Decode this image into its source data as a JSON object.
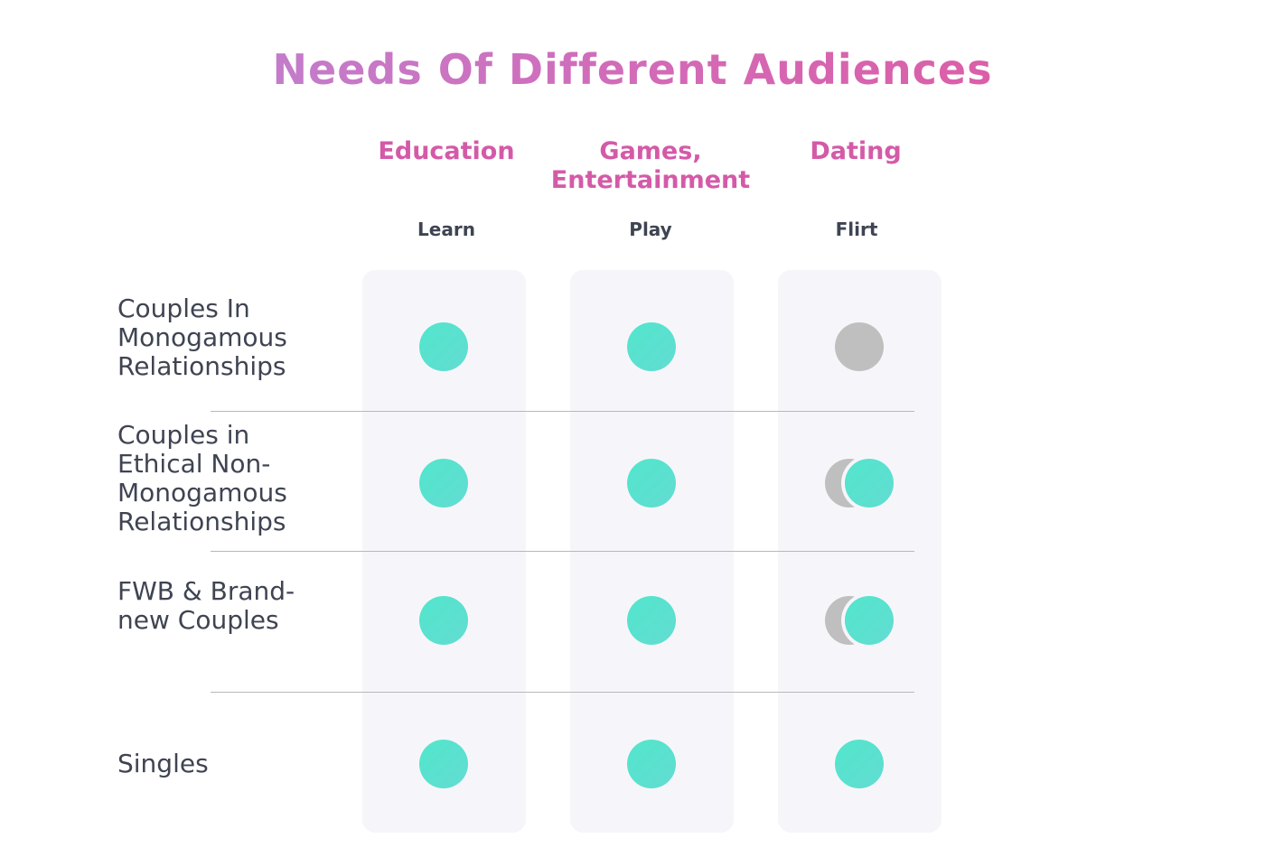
{
  "title": "Needs Of Different Audiences",
  "columns": [
    {
      "label": "Education",
      "sub": "Learn"
    },
    {
      "label": "Games, Entertainment",
      "sub": "Play"
    },
    {
      "label": "Dating",
      "sub": "Flirt"
    }
  ],
  "rows": [
    {
      "label": "Couples In Monogamous Relationships",
      "marks": [
        "full",
        "full",
        "none"
      ]
    },
    {
      "label": "Couples in Ethical Non-Monogamous Relationships",
      "marks": [
        "full",
        "full",
        "partial"
      ]
    },
    {
      "label": "FWB & Brand-new Couples",
      "marks": [
        "full",
        "full",
        "partial"
      ]
    },
    {
      "label": "Singles",
      "marks": [
        "full",
        "full",
        "full"
      ]
    }
  ],
  "colors": {
    "teal": "#56e2cd",
    "gray": "#bfbfbf",
    "accent": "#d45aa8"
  }
}
